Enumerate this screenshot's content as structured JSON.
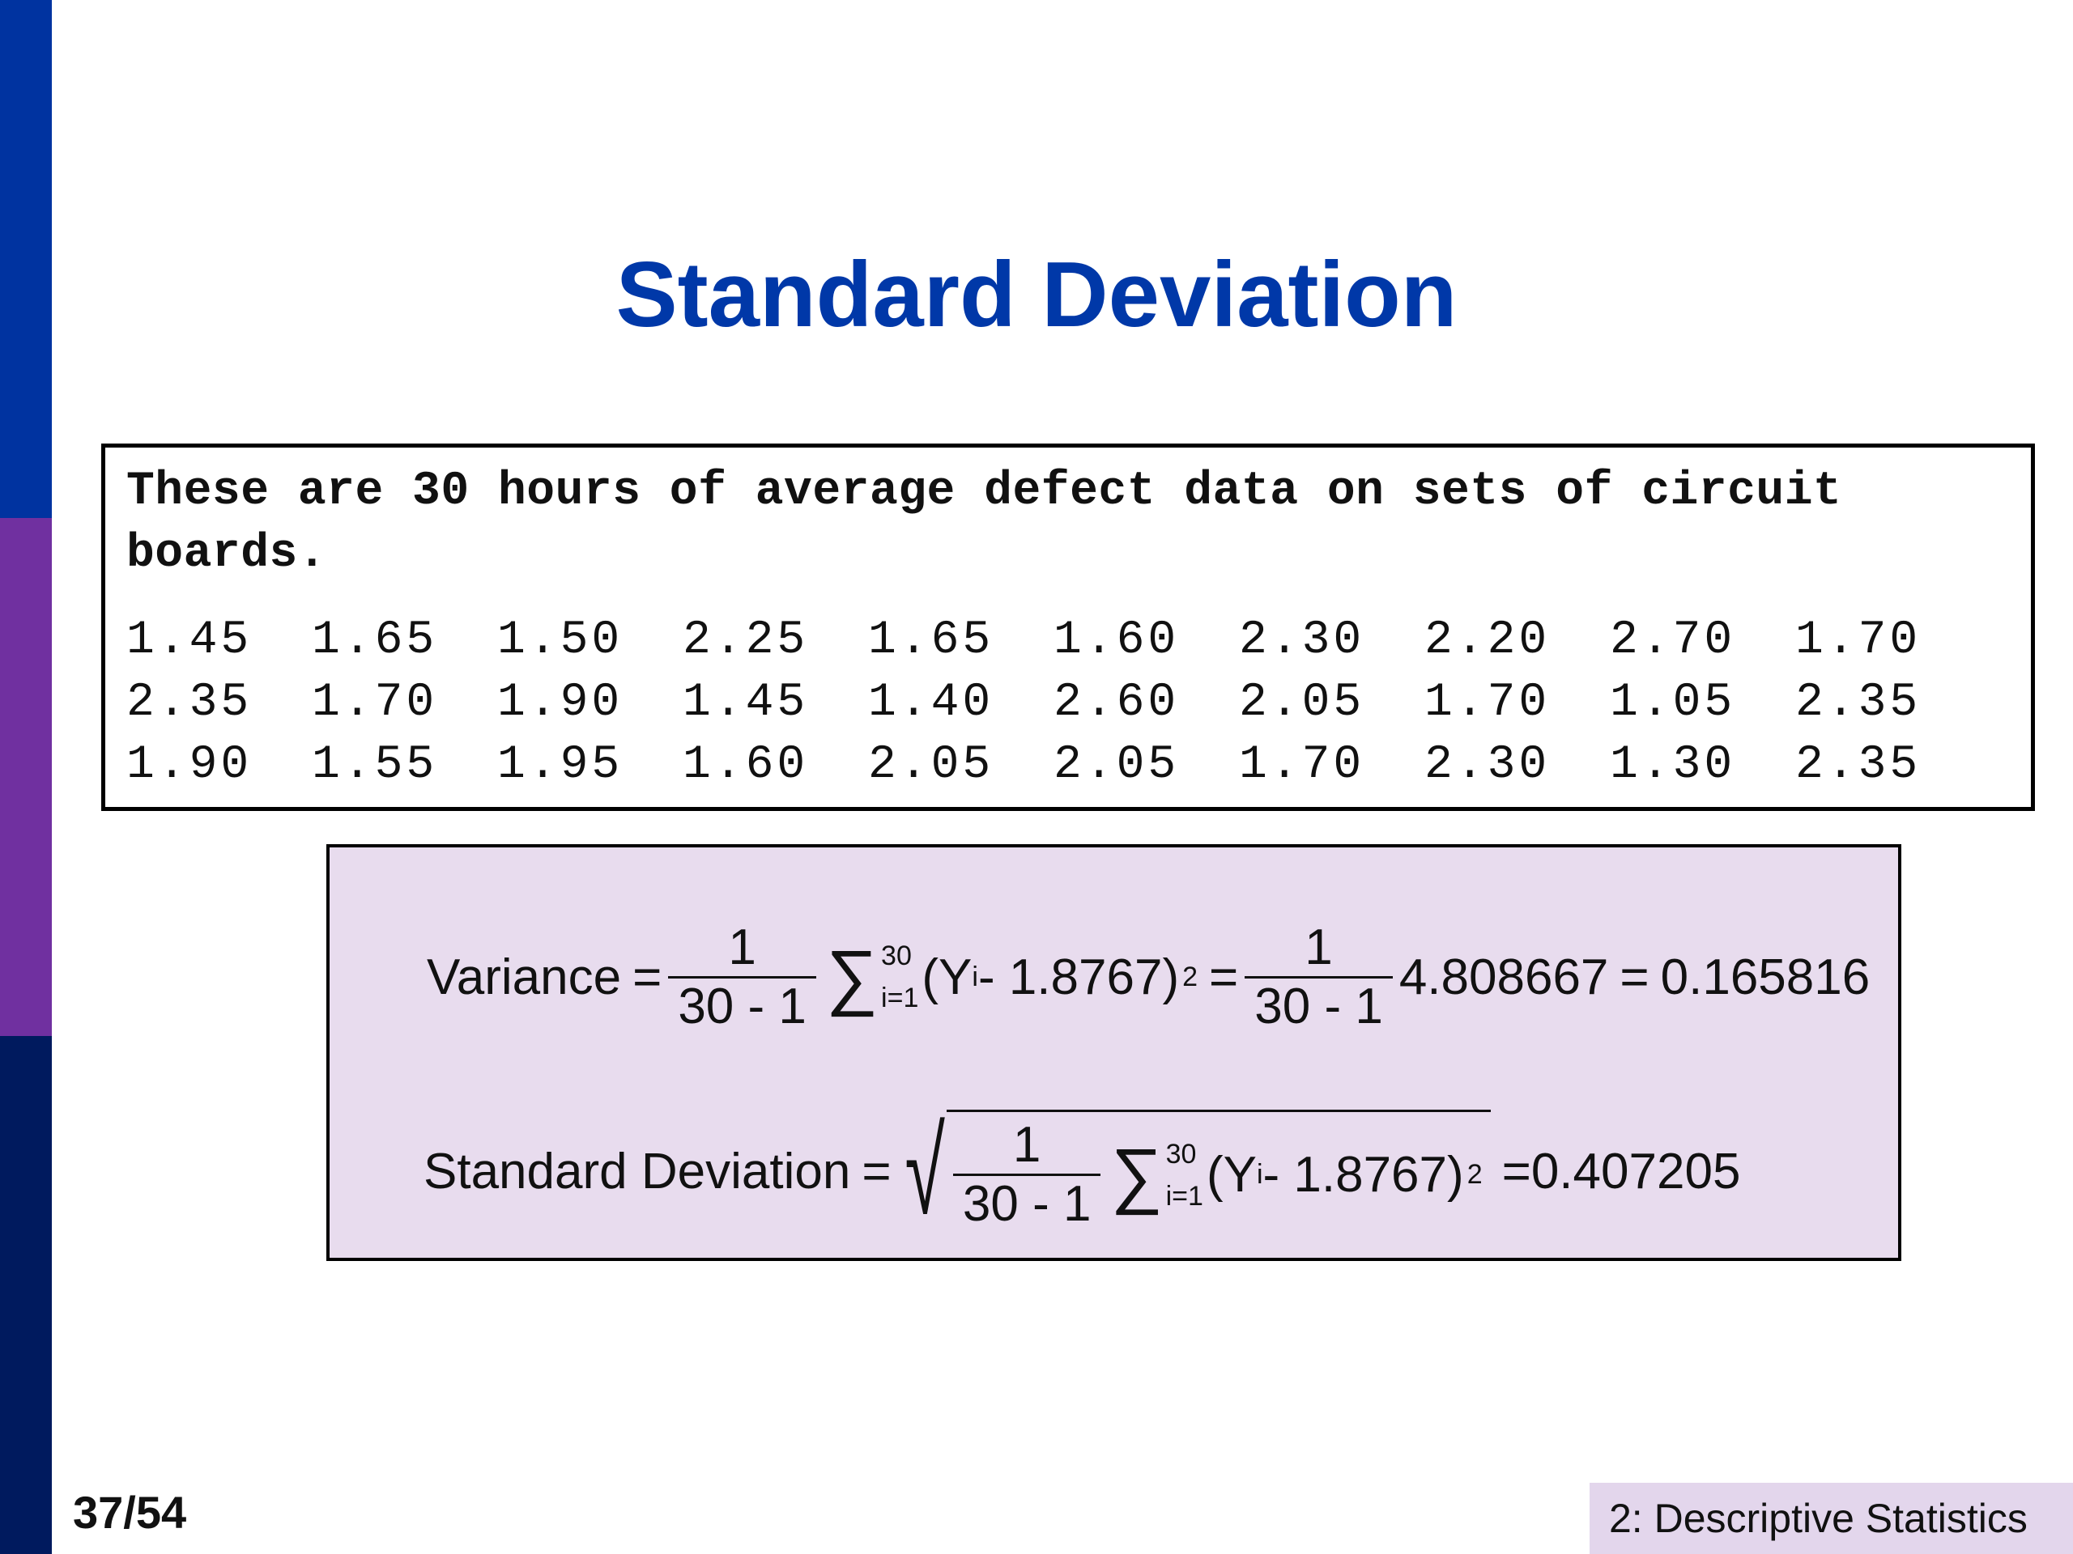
{
  "slide": {
    "title": "Standard Deviation",
    "page_number": "37/54",
    "section": "2: Descriptive Statistics",
    "colors": {
      "title": "#0038a8",
      "bar_top": "#0033a0",
      "bar_middle": "#7030a0",
      "bar_bottom": "#001a5e",
      "formula_background": "#e8dcee",
      "footer_background": "#e3d6ec"
    }
  },
  "data_box": {
    "description_line1": "These are 30 hours of average defect data on sets of circuit",
    "description_line2": "boards.",
    "rows": [
      [
        "1.45",
        "1.65",
        "1.50",
        "2.25",
        "1.65",
        "1.60",
        "2.30",
        "2.20",
        "2.70",
        "1.70"
      ],
      [
        "2.35",
        "1.70",
        "1.90",
        "1.45",
        "1.40",
        "2.60",
        "2.05",
        "1.70",
        "1.05",
        "2.35"
      ],
      [
        "1.90",
        "1.55",
        "1.95",
        "1.60",
        "2.05",
        "2.05",
        "1.70",
        "2.30",
        "1.30",
        "2.35"
      ]
    ]
  },
  "variance": {
    "label": "Variance",
    "equals": "=",
    "numerator": "1",
    "denominator": "30 - 1",
    "sigma": "∑",
    "upper_limit": "30",
    "lower_limit": "i=1",
    "open_paren": "(",
    "y": "Y",
    "y_sub": "i",
    "minus_mean": " - 1.8767",
    "close_paren": ")",
    "exponent": "2",
    "sum_value": "4.808667",
    "result": "0.165816"
  },
  "standard_deviation": {
    "label": "Standard Deviation",
    "equals": "=",
    "radical": "√",
    "numerator": "1",
    "denominator": "30 - 1",
    "sigma": "∑",
    "upper_limit": "30",
    "lower_limit": "i=1",
    "open_paren": "(",
    "y": "Y",
    "y_sub": "i",
    "minus_mean": " - 1.8767",
    "close_paren": ")",
    "exponent": "2",
    "result": "0.407205"
  }
}
